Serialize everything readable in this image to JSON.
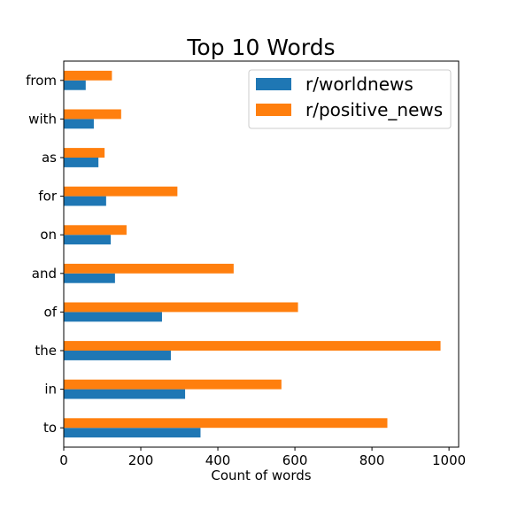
{
  "chart_data": {
    "type": "bar",
    "orientation": "horizontal",
    "title": "Top 10 Words",
    "xlabel": "Count of words",
    "ylabel": "",
    "categories": [
      "to",
      "in",
      "the",
      "of",
      "and",
      "on",
      "for",
      "as",
      "with",
      "from"
    ],
    "series": [
      {
        "name": "r/worldnews",
        "color": "#1f77b4",
        "values": [
          355,
          315,
          278,
          255,
          133,
          122,
          110,
          90,
          78,
          57
        ]
      },
      {
        "name": "r/positive_news",
        "color": "#ff7f0e",
        "values": [
          840,
          565,
          978,
          608,
          441,
          163,
          295,
          106,
          149,
          125
        ]
      }
    ],
    "xlim": [
      0,
      1025
    ],
    "xticks": [
      0,
      200,
      400,
      600,
      800,
      1000
    ],
    "grid": false,
    "legend": "top-right"
  }
}
